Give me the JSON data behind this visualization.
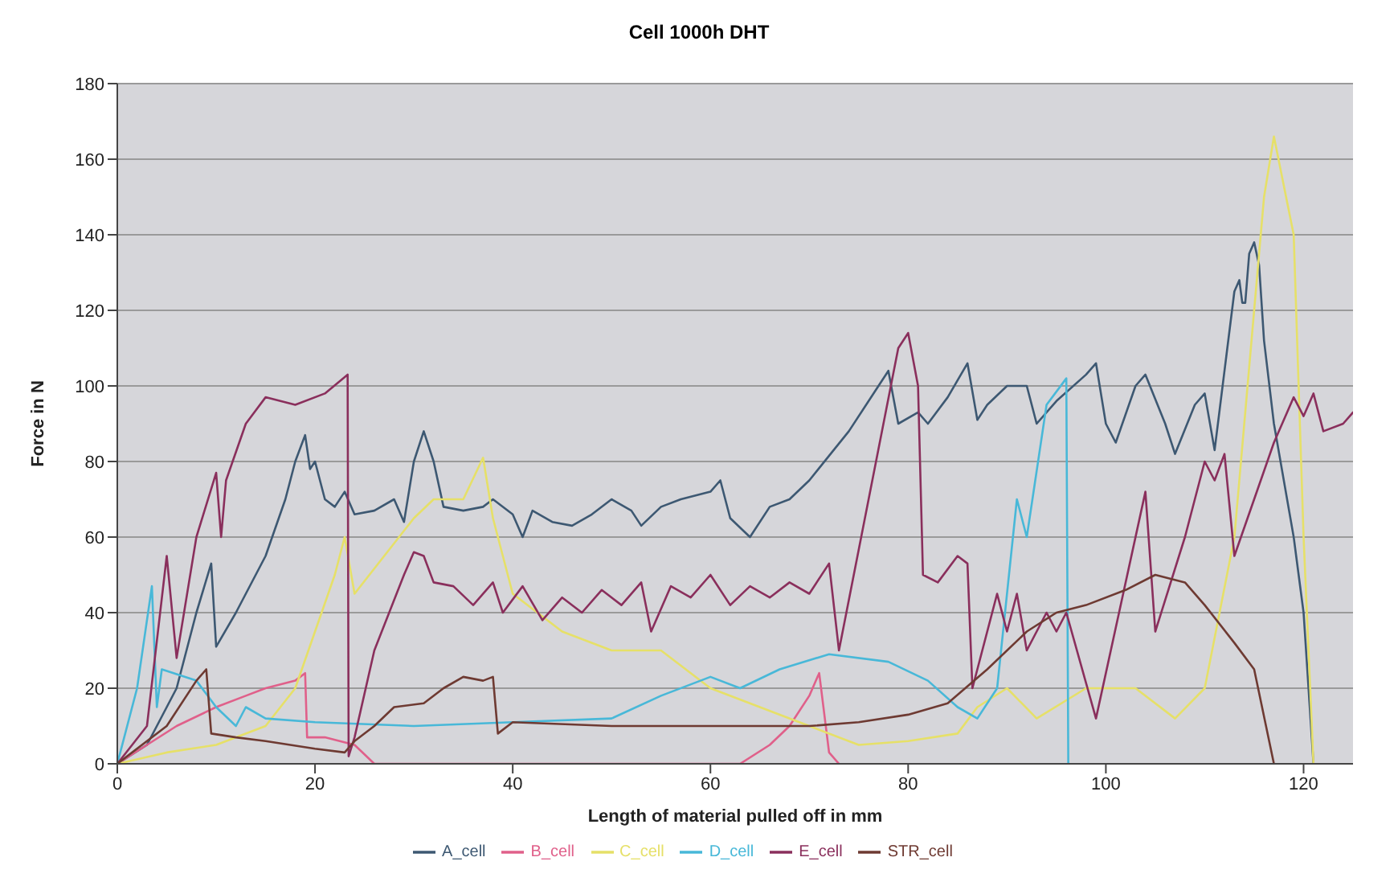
{
  "chart_data": {
    "type": "line",
    "title": "Cell 1000h DHT",
    "xlabel": "Length of material pulled off in mm",
    "ylabel": "Force in N",
    "xlim": [
      0,
      125
    ],
    "xticks": [
      0,
      20,
      40,
      60,
      80,
      100,
      120
    ],
    "ylim": [
      0,
      180
    ],
    "yticks": [
      0,
      20,
      40,
      60,
      80,
      100,
      120,
      140,
      160,
      180
    ],
    "grid": "y",
    "legend": "bottom",
    "marker": "none",
    "line_style": "solid",
    "series": [
      {
        "name": "A_cell",
        "color": "#3d5872",
        "x": [
          0,
          3,
          6,
          8,
          9.5,
          10,
          12,
          15,
          17,
          18,
          19,
          19.5,
          20,
          21,
          22,
          23,
          24,
          26,
          28,
          29,
          30,
          31,
          32,
          33,
          35,
          37,
          38,
          40,
          41,
          42,
          44,
          46,
          48,
          50,
          52,
          53,
          55,
          57,
          60,
          61,
          62,
          64,
          66,
          68,
          70,
          74,
          77,
          78,
          79,
          81,
          82,
          84,
          86,
          87,
          88,
          90,
          92,
          93,
          95,
          98,
          99,
          100,
          101,
          103,
          104,
          106,
          107,
          109,
          110,
          111,
          113,
          113.5,
          113.8,
          114.1,
          114.5,
          115,
          115.5,
          116,
          117,
          119,
          120,
          121
        ],
        "values": [
          0,
          5,
          20,
          40,
          53,
          31,
          40,
          55,
          70,
          80,
          87,
          78,
          80,
          70,
          68,
          72,
          66,
          67,
          70,
          64,
          80,
          88,
          80,
          68,
          67,
          68,
          70,
          66,
          60,
          67,
          64,
          63,
          66,
          70,
          67,
          63,
          68,
          70,
          72,
          75,
          65,
          60,
          68,
          70,
          75,
          88,
          100,
          104,
          90,
          93,
          90,
          97,
          106,
          91,
          95,
          100,
          100,
          90,
          96,
          103,
          106,
          90,
          85,
          100,
          103,
          90,
          82,
          95,
          98,
          83,
          125,
          128,
          122,
          122,
          135,
          138,
          132,
          112,
          90,
          60,
          40,
          0
        ]
      },
      {
        "name": "B_cell",
        "color": "#e0608a",
        "x": [
          0,
          3,
          6,
          10,
          13,
          15,
          18,
          19,
          19.2,
          21,
          24,
          26,
          63,
          66,
          68,
          70,
          71,
          72,
          73
        ],
        "values": [
          0,
          5,
          10,
          15,
          18,
          20,
          22,
          24,
          7,
          7,
          5,
          0,
          0,
          5,
          10,
          18,
          24,
          3,
          0
        ]
      },
      {
        "name": "C_cell",
        "color": "#e6e068",
        "x": [
          0,
          5,
          10,
          15,
          18,
          20,
          22,
          23,
          24,
          27,
          30,
          32,
          35,
          37,
          38,
          40,
          45,
          50,
          55,
          60,
          65,
          70,
          75,
          80,
          85,
          87,
          90,
          93,
          98,
          103,
          107,
          110,
          113,
          116,
          117,
          119,
          120,
          121
        ],
        "values": [
          0,
          3,
          5,
          10,
          20,
          35,
          50,
          60,
          45,
          55,
          65,
          70,
          70,
          81,
          65,
          45,
          35,
          30,
          30,
          20,
          15,
          10,
          5,
          6,
          8,
          15,
          20,
          12,
          20,
          20,
          12,
          20,
          60,
          150,
          166,
          140,
          60,
          0
        ]
      },
      {
        "name": "D_cell",
        "color": "#48b8d8",
        "x": [
          0,
          2,
          3.5,
          4,
          4.5,
          8,
          10,
          12,
          13,
          15,
          20,
          30,
          40,
          50,
          55,
          60,
          63,
          67,
          72,
          78,
          82,
          85,
          87,
          89,
          91,
          92,
          94,
          96,
          96.2
        ],
        "values": [
          0,
          20,
          47,
          15,
          25,
          22,
          15,
          10,
          15,
          12,
          11,
          10,
          11,
          12,
          18,
          23,
          20,
          25,
          29,
          27,
          22,
          15,
          12,
          20,
          70,
          60,
          95,
          102,
          0
        ]
      },
      {
        "name": "E_cell",
        "color": "#8a2f5c",
        "x": [
          0,
          3,
          5,
          6,
          8,
          10,
          10.5,
          11,
          13,
          15,
          18,
          21,
          23.3,
          23.4,
          24,
          26,
          29,
          30,
          31,
          32,
          34,
          36,
          38,
          39,
          41,
          43,
          45,
          47,
          49,
          51,
          53,
          54,
          56,
          58,
          60,
          62,
          64,
          66,
          68,
          70,
          72,
          73,
          76,
          79,
          80,
          81,
          81.5,
          83,
          85,
          86,
          86.5,
          89,
          90,
          91,
          92,
          94,
          95,
          96,
          99,
          104,
          105,
          108,
          110,
          111,
          112,
          113,
          115,
          117,
          119,
          120,
          121,
          122,
          124,
          125
        ],
        "values": [
          0,
          10,
          55,
          28,
          60,
          77,
          60,
          75,
          90,
          97,
          95,
          98,
          103,
          2,
          7,
          30,
          50,
          56,
          55,
          48,
          47,
          42,
          48,
          40,
          47,
          38,
          44,
          40,
          46,
          42,
          48,
          35,
          47,
          44,
          50,
          42,
          47,
          44,
          48,
          45,
          53,
          30,
          70,
          110,
          114,
          100,
          50,
          48,
          55,
          53,
          20,
          45,
          35,
          45,
          30,
          40,
          35,
          40,
          12,
          72,
          35,
          60,
          80,
          75,
          82,
          55,
          70,
          85,
          97,
          92,
          98,
          88,
          90,
          93
        ]
      },
      {
        "name": "STR_cell",
        "color": "#6e3a32",
        "x": [
          0,
          5,
          8,
          9,
          9.5,
          12,
          15,
          20,
          23,
          24,
          26,
          28,
          31,
          33,
          35,
          37,
          38,
          38.5,
          40,
          50,
          60,
          70,
          75,
          80,
          84,
          88,
          92,
          95,
          98,
          102,
          105,
          108,
          110,
          113,
          115,
          117
        ],
        "values": [
          0,
          10,
          22,
          25,
          8,
          7,
          6,
          4,
          3,
          6,
          10,
          15,
          16,
          20,
          23,
          22,
          23,
          8,
          11,
          10,
          10,
          10,
          11,
          13,
          16,
          25,
          35,
          40,
          42,
          46,
          50,
          48,
          42,
          32,
          25,
          0
        ]
      }
    ]
  }
}
